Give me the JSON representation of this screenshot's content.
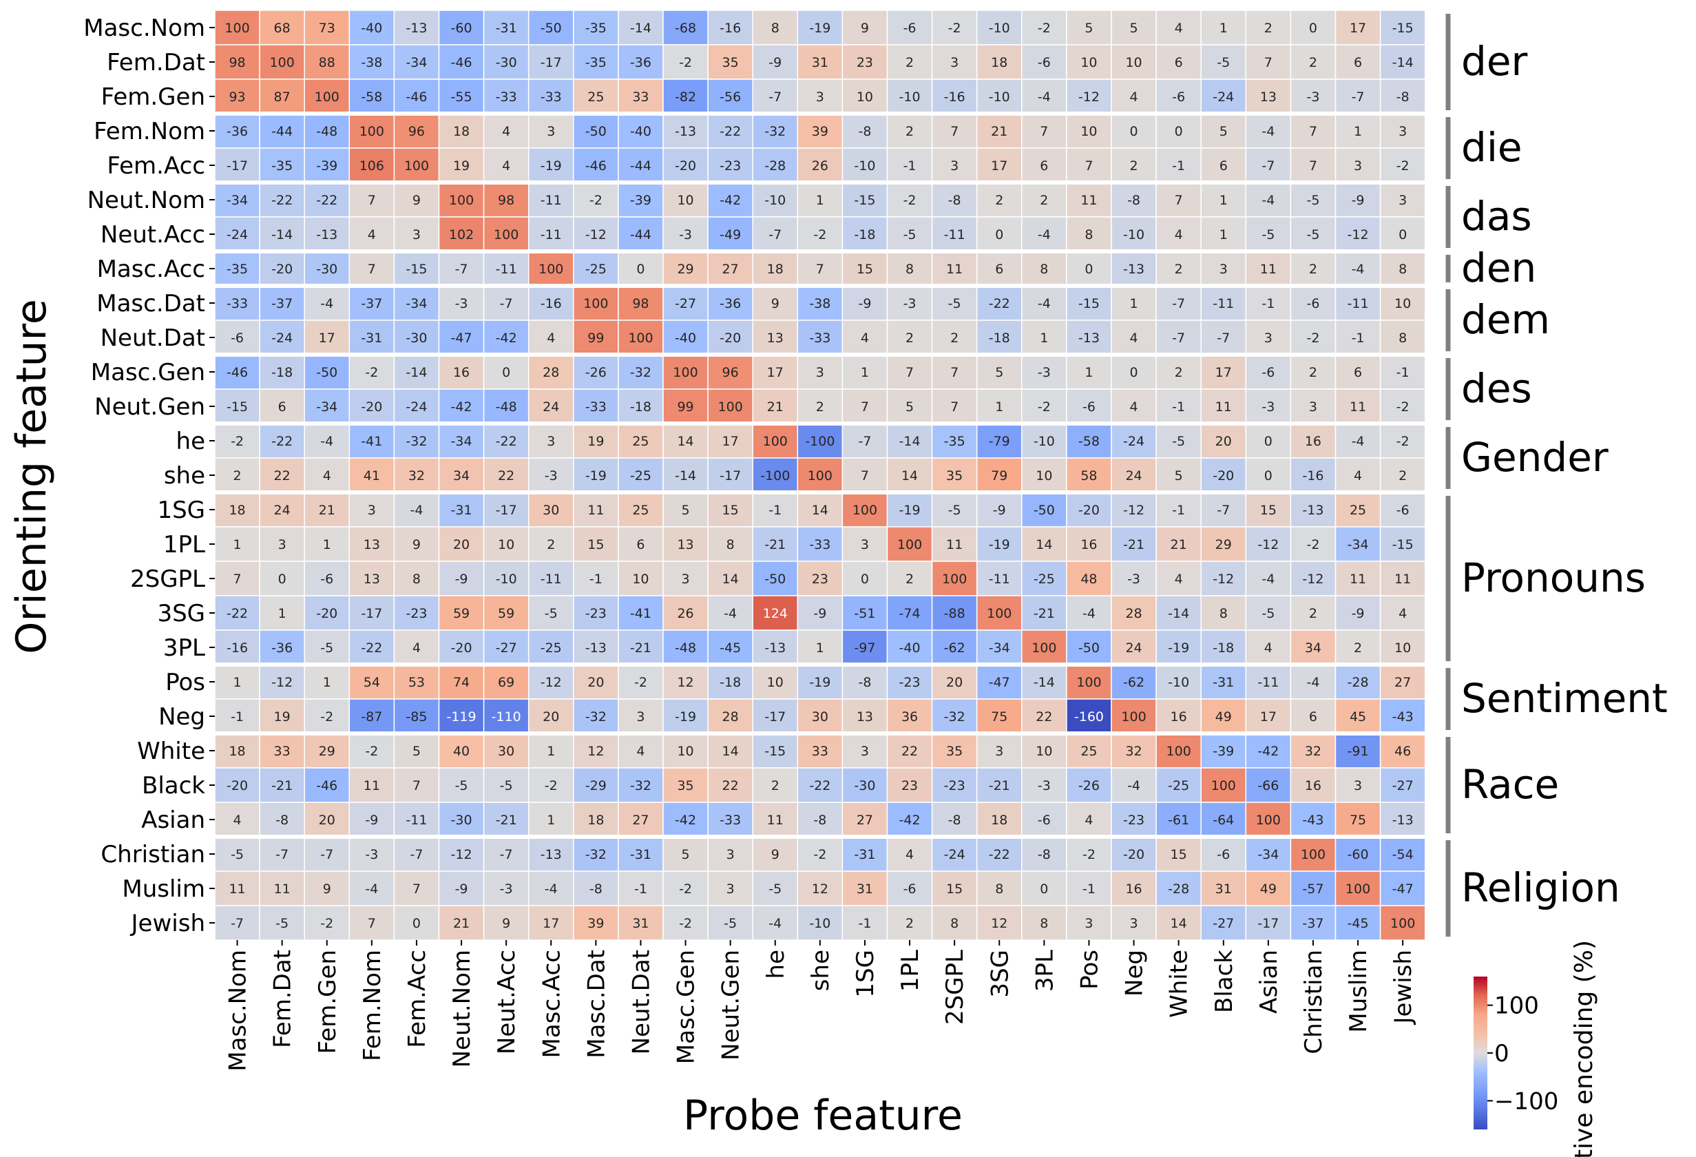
{
  "chart_data": {
    "type": "heatmap",
    "xlabel": "Probe feature",
    "ylabel": "Orienting feature",
    "colorbar_label": "ative encoding (%)",
    "colorbar_ticks": [
      100,
      0,
      -100
    ],
    "color_range": [
      -160,
      160
    ],
    "colors": {
      "low": "#3b4cc0",
      "mid": "#dddcdc",
      "high": "#b40426"
    },
    "rows": [
      "Masc.Nom",
      "Fem.Dat",
      "Fem.Gen",
      "Fem.Nom",
      "Fem.Acc",
      "Neut.Nom",
      "Neut.Acc",
      "Masc.Acc",
      "Masc.Dat",
      "Neut.Dat",
      "Masc.Gen",
      "Neut.Gen",
      "he",
      "she",
      "1SG",
      "1PL",
      "2SGPL",
      "3SG",
      "3PL",
      "Pos",
      "Neg",
      "White",
      "Black",
      "Asian",
      "Christian",
      "Muslim",
      "Jewish"
    ],
    "columns": [
      "Masc.Nom",
      "Fem.Dat",
      "Fem.Gen",
      "Fem.Nom",
      "Fem.Acc",
      "Neut.Nom",
      "Neut.Acc",
      "Masc.Acc",
      "Masc.Dat",
      "Neut.Dat",
      "Masc.Gen",
      "Neut.Gen",
      "he",
      "she",
      "1SG",
      "1PL",
      "2SGPL",
      "3SG",
      "3PL",
      "Pos",
      "Neg",
      "White",
      "Black",
      "Asian",
      "Christian",
      "Muslim",
      "Jewish"
    ],
    "groups": [
      {
        "label": "der",
        "rows": [
          0,
          2
        ]
      },
      {
        "label": "die",
        "rows": [
          3,
          4
        ]
      },
      {
        "label": "das",
        "rows": [
          5,
          6
        ]
      },
      {
        "label": "den",
        "rows": [
          7,
          7
        ]
      },
      {
        "label": "dem",
        "rows": [
          8,
          9
        ]
      },
      {
        "label": "des",
        "rows": [
          10,
          11
        ]
      },
      {
        "label": "Gender",
        "rows": [
          12,
          13
        ]
      },
      {
        "label": "Pronouns",
        "rows": [
          14,
          18
        ]
      },
      {
        "label": "Sentiment",
        "rows": [
          19,
          20
        ]
      },
      {
        "label": "Race",
        "rows": [
          21,
          23
        ]
      },
      {
        "label": "Religion",
        "rows": [
          24,
          26
        ]
      }
    ],
    "values": [
      [
        100,
        68,
        73,
        -40,
        -13,
        -60,
        -31,
        -50,
        -35,
        -14,
        -68,
        -16,
        8,
        -19,
        9,
        -6,
        -2,
        -10,
        -2,
        5,
        5,
        4,
        1,
        2,
        0,
        17,
        -15
      ],
      [
        98,
        100,
        88,
        -38,
        -34,
        -46,
        -30,
        -17,
        -35,
        -36,
        -2,
        35,
        -9,
        31,
        23,
        2,
        3,
        18,
        -6,
        10,
        10,
        6,
        -5,
        7,
        2,
        6,
        -14
      ],
      [
        93,
        87,
        100,
        -58,
        -46,
        -55,
        -33,
        -33,
        25,
        33,
        -82,
        -56,
        -7,
        3,
        10,
        -10,
        -16,
        -10,
        -4,
        -12,
        4,
        -6,
        -24,
        13,
        -3,
        -7,
        -8
      ],
      [
        -36,
        -44,
        -48,
        100,
        96,
        18,
        4,
        3,
        -50,
        -40,
        -13,
        -22,
        -32,
        39,
        -8,
        2,
        7,
        21,
        7,
        10,
        0,
        0,
        5,
        -4,
        7,
        1,
        3
      ],
      [
        -17,
        -35,
        -39,
        106,
        100,
        19,
        4,
        -19,
        -46,
        -44,
        -20,
        -23,
        -28,
        26,
        -10,
        -1,
        3,
        17,
        6,
        7,
        2,
        -1,
        6,
        -7,
        7,
        3,
        -2
      ],
      [
        -34,
        -22,
        -22,
        7,
        9,
        100,
        98,
        -11,
        -2,
        -39,
        10,
        -42,
        -10,
        1,
        -15,
        -2,
        -8,
        2,
        2,
        11,
        -8,
        7,
        1,
        -4,
        -5,
        -9,
        3
      ],
      [
        -24,
        -14,
        -13,
        4,
        3,
        102,
        100,
        -11,
        -12,
        -44,
        -3,
        -49,
        -7,
        -2,
        -18,
        -5,
        -11,
        0,
        -4,
        8,
        -10,
        4,
        1,
        -5,
        -5,
        -12,
        0
      ],
      [
        -35,
        -20,
        -30,
        7,
        -15,
        -7,
        -11,
        100,
        -25,
        0,
        29,
        27,
        18,
        7,
        15,
        8,
        11,
        6,
        8,
        0,
        -13,
        2,
        3,
        11,
        2,
        -4,
        8
      ],
      [
        -33,
        -37,
        -4,
        -37,
        -34,
        -3,
        -7,
        -16,
        100,
        98,
        -27,
        -36,
        9,
        -38,
        -9,
        -3,
        -5,
        -22,
        -4,
        -15,
        1,
        -7,
        -11,
        -1,
        -6,
        -11,
        10
      ],
      [
        -6,
        -24,
        17,
        -31,
        -30,
        -47,
        -42,
        4,
        99,
        100,
        -40,
        -20,
        13,
        -33,
        4,
        2,
        2,
        -18,
        1,
        -13,
        4,
        -7,
        -7,
        3,
        -2,
        -1,
        8
      ],
      [
        -46,
        -18,
        -50,
        -2,
        -14,
        16,
        0,
        28,
        -26,
        -32,
        100,
        96,
        17,
        3,
        1,
        7,
        7,
        5,
        -3,
        1,
        0,
        2,
        17,
        -6,
        2,
        6,
        -1
      ],
      [
        -15,
        6,
        -34,
        -20,
        -24,
        -42,
        -48,
        24,
        -33,
        -18,
        99,
        100,
        21,
        2,
        7,
        5,
        7,
        1,
        -2,
        -6,
        4,
        -1,
        11,
        -3,
        3,
        11,
        -2
      ],
      [
        -2,
        -22,
        -4,
        -41,
        -32,
        -34,
        -22,
        3,
        19,
        25,
        14,
        17,
        100,
        -100,
        -7,
        -14,
        -35,
        -79,
        -10,
        -58,
        -24,
        -5,
        20,
        0,
        16,
        -4,
        -2
      ],
      [
        2,
        22,
        4,
        41,
        32,
        34,
        22,
        -3,
        -19,
        -25,
        -14,
        -17,
        -100,
        100,
        7,
        14,
        35,
        79,
        10,
        58,
        24,
        5,
        -20,
        0,
        -16,
        4,
        2
      ],
      [
        18,
        24,
        21,
        3,
        -4,
        -31,
        -17,
        30,
        11,
        25,
        5,
        15,
        -1,
        14,
        100,
        -19,
        -5,
        -9,
        -50,
        -20,
        -12,
        -1,
        -7,
        15,
        -13,
        25,
        -6
      ],
      [
        1,
        3,
        1,
        13,
        9,
        20,
        10,
        2,
        15,
        6,
        13,
        8,
        -21,
        -33,
        3,
        100,
        11,
        -19,
        14,
        16,
        -21,
        21,
        29,
        -12,
        -2,
        -34,
        -15
      ],
      [
        7,
        0,
        -6,
        13,
        8,
        -9,
        -10,
        -11,
        -1,
        10,
        3,
        14,
        -50,
        23,
        0,
        2,
        100,
        -11,
        -25,
        48,
        -3,
        4,
        -12,
        -4,
        -12,
        11,
        11
      ],
      [
        -22,
        1,
        -20,
        -17,
        -23,
        59,
        59,
        -5,
        -23,
        -41,
        26,
        -4,
        124,
        -9,
        -51,
        -74,
        -88,
        100,
        -21,
        -4,
        28,
        -14,
        8,
        -5,
        2,
        -9,
        4
      ],
      [
        -16,
        -36,
        -5,
        -22,
        4,
        -20,
        -27,
        -25,
        -13,
        -21,
        -48,
        -45,
        -13,
        1,
        -97,
        -40,
        -62,
        -34,
        100,
        -50,
        24,
        -19,
        -18,
        4,
        34,
        2,
        10
      ],
      [
        1,
        -12,
        1,
        54,
        53,
        74,
        69,
        -12,
        20,
        -2,
        12,
        -18,
        10,
        -19,
        -8,
        -23,
        20,
        -47,
        -14,
        100,
        -62,
        -10,
        -31,
        -11,
        -4,
        -28,
        27
      ],
      [
        -1,
        19,
        -2,
        -87,
        -85,
        -119,
        -110,
        20,
        -32,
        3,
        -19,
        28,
        -17,
        30,
        13,
        36,
        -32,
        75,
        22,
        -160,
        100,
        16,
        49,
        17,
        6,
        45,
        -43
      ],
      [
        18,
        33,
        29,
        -2,
        5,
        40,
        30,
        1,
        12,
        4,
        10,
        14,
        -15,
        33,
        3,
        22,
        35,
        3,
        10,
        25,
        32,
        100,
        -39,
        -42,
        32,
        -91,
        46
      ],
      [
        -20,
        -21,
        -46,
        11,
        7,
        -5,
        -5,
        -2,
        -29,
        -32,
        35,
        22,
        2,
        -22,
        -30,
        23,
        -23,
        -21,
        -3,
        -26,
        -4,
        -25,
        100,
        -66,
        16,
        3,
        -27
      ],
      [
        4,
        -8,
        20,
        -9,
        -11,
        -30,
        -21,
        1,
        18,
        27,
        -42,
        -33,
        11,
        -8,
        27,
        -42,
        -8,
        18,
        -6,
        4,
        -23,
        -61,
        -64,
        100,
        -43,
        75,
        -13
      ],
      [
        -5,
        -7,
        -7,
        -3,
        -7,
        -12,
        -7,
        -13,
        -32,
        -31,
        5,
        3,
        9,
        -2,
        -31,
        4,
        -24,
        -22,
        -8,
        -2,
        -20,
        15,
        -6,
        -34,
        100,
        -60,
        -54
      ],
      [
        11,
        11,
        9,
        -4,
        7,
        -9,
        -3,
        -4,
        -8,
        -1,
        -2,
        3,
        -5,
        12,
        31,
        -6,
        15,
        8,
        0,
        -1,
        16,
        -28,
        31,
        49,
        -57,
        100,
        -47
      ],
      [
        -7,
        -5,
        -2,
        7,
        0,
        21,
        9,
        17,
        39,
        31,
        -2,
        -5,
        -4,
        -10,
        -1,
        2,
        8,
        12,
        8,
        3,
        3,
        14,
        -27,
        -17,
        -37,
        -45,
        100
      ]
    ]
  }
}
